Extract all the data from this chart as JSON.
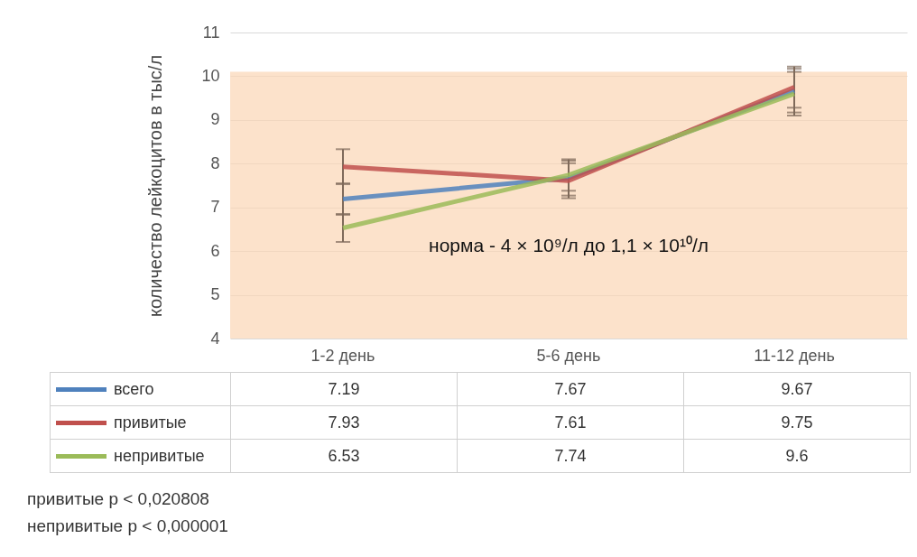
{
  "chart_data": {
    "type": "line",
    "ylabel": "количество лейкоцитов в тыс/л",
    "categories": [
      "1-2 день",
      "5-6 день",
      "11-12 день"
    ],
    "series": [
      {
        "name": "всего",
        "color": "#4f81bd",
        "values": [
          7.19,
          7.67,
          9.67
        ],
        "errors": [
          0.36,
          0.4,
          0.5
        ]
      },
      {
        "name": "привитые",
        "color": "#c0504d",
        "values": [
          7.93,
          7.61,
          9.75
        ],
        "errors": [
          0.4,
          0.4,
          0.47
        ]
      },
      {
        "name": "непривитые",
        "color": "#9bbb59",
        "values": [
          6.53,
          7.74,
          9.6
        ],
        "errors": [
          0.32,
          0.36,
          0.5
        ]
      }
    ],
    "ylim": [
      4,
      11
    ],
    "yticks": [
      4,
      5,
      6,
      7,
      8,
      9,
      10,
      11
    ],
    "grid": "y",
    "legend": "bottom",
    "data_labels": true,
    "marker": "none",
    "line_style": "solid",
    "bands": [
      {
        "axis": "y",
        "from": 4,
        "to": 10.1,
        "label": "норма - 4 × 10⁹/л до 1,1 × 10¹⁰/л",
        "color": "#fbd5b5"
      }
    ],
    "annotations": [
      "привитые p < 0,020808",
      "непривитые p < 0,000001"
    ]
  }
}
